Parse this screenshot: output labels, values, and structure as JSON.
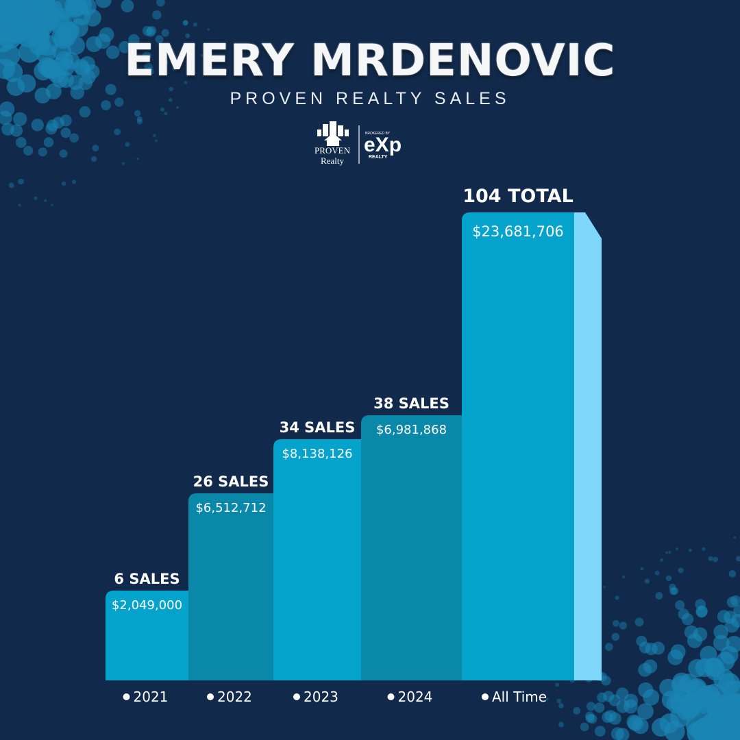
{
  "header": {
    "title": "EMERY MRDENOVIC",
    "subtitle": "PROVEN REALTY SALES"
  },
  "logo": {
    "left_line1": "PROVEN",
    "left_line2": "Realty",
    "right_small": "BROKERED BY",
    "right_big": "eXp",
    "right_sub": "REALTY"
  },
  "colors": {
    "background": "#11294a",
    "bar_light": "#04a3cc",
    "bar_dark": "#0a88aa",
    "bar_side": "#7fd8fb",
    "dots": "#1a85b4"
  },
  "chart_data": {
    "type": "bar",
    "categories": [
      "2021",
      "2022",
      "2023",
      "2024",
      "All Time"
    ],
    "sales_labels": [
      "6 SALES",
      "26 SALES",
      "34 SALES",
      "38 SALES",
      "104 TOTAL"
    ],
    "value_labels": [
      "$2,049,000",
      "$6,512,712",
      "$8,138,126",
      "$6,981,868",
      "$23,681,706"
    ],
    "series": [
      {
        "values": [
          6,
          26,
          34,
          38,
          104
        ]
      }
    ],
    "sales_volume": [
      2049000,
      6512712,
      8138126,
      6981868,
      23681706
    ],
    "legend": "bottom"
  }
}
